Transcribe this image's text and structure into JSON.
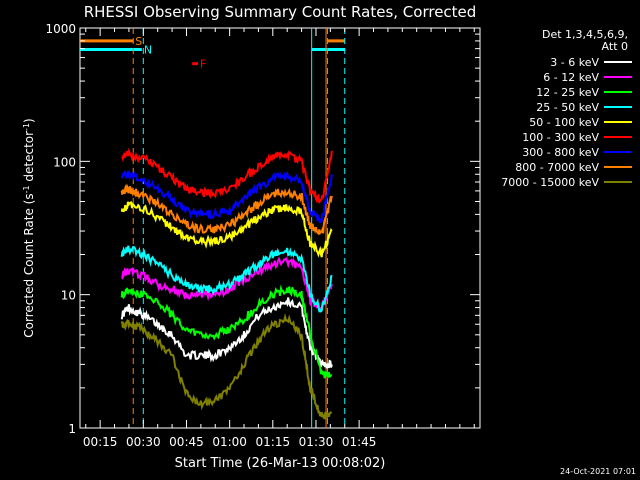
{
  "chart_data": {
    "type": "line",
    "title": "RHESSI Observing Summary Count Rates, Corrected",
    "xlabel": "Start Time (26-Mar-13 00:08:02)",
    "ylabel_parts": [
      "Corrected Count Rate (s",
      "-1",
      " detector",
      "-1",
      ")"
    ],
    "yscale": "log",
    "xlim": [
      8,
      147
    ],
    "ylim": [
      1,
      1000
    ],
    "x_ticks": [
      {
        "x": 15,
        "label": "00:15"
      },
      {
        "x": 30,
        "label": "00:30"
      },
      {
        "x": 45,
        "label": "00:45"
      },
      {
        "x": 60,
        "label": "01:00"
      },
      {
        "x": 75,
        "label": "01:15"
      },
      {
        "x": 90,
        "label": "01:30"
      },
      {
        "x": 105,
        "label": "01:45"
      }
    ],
    "y_ticks": [
      {
        "y": 1,
        "label": "1"
      },
      {
        "y": 10,
        "label": "10"
      },
      {
        "y": 100,
        "label": "100"
      },
      {
        "y": 1000,
        "label": "1000"
      }
    ],
    "legend_header": [
      "Det 1,3,4,5,6,9,",
      "Att 0"
    ],
    "flags": [
      {
        "label": "S",
        "color": "#ff7f00",
        "x_start": 8,
        "x_end": 26.5,
        "y": 800
      },
      {
        "label": "N",
        "color": "#00ffff",
        "x_start": 8,
        "x_end": 29.5,
        "y": 690
      },
      {
        "label": "F",
        "color": "#ff0000",
        "x_start": 47,
        "x_end": 49,
        "y": 540
      }
    ],
    "vlines": [
      {
        "x": 26.5,
        "color": "#ff7f00"
      },
      {
        "x": 30,
        "color": "#00ffff"
      },
      {
        "x": 88.5,
        "color": "#00ffff",
        "style": "solid"
      },
      {
        "x": 93.5,
        "color": "#ff7f00",
        "style": "solid"
      },
      {
        "x": 94,
        "color": "#ff7f00"
      },
      {
        "x": 100,
        "color": "#00ffff"
      }
    ],
    "flag_right": [
      {
        "color": "#00ffff",
        "x_start": 88.5,
        "x_end": 100,
        "y": 690
      },
      {
        "color": "#ff7f00",
        "x_start": 94,
        "x_end": 100,
        "y": 800
      }
    ],
    "x": [
      22.5,
      25,
      30,
      35,
      40,
      45,
      50,
      55,
      60,
      65,
      70,
      75,
      80,
      85,
      88,
      92,
      95.5
    ],
    "series": [
      {
        "name": "3 - 6 keV",
        "color": "#ffffff",
        "values": [
          7,
          8,
          7,
          6,
          5,
          3.5,
          3.5,
          3.5,
          4,
          5,
          7,
          8,
          9,
          8,
          4,
          3,
          3
        ]
      },
      {
        "name": "6 - 12 keV",
        "color": "#ff00ff",
        "values": [
          14,
          15,
          14,
          12,
          11,
          10,
          10,
          10,
          11,
          13,
          15,
          17,
          18,
          16,
          9,
          8,
          12
        ]
      },
      {
        "name": "12 - 25 keV",
        "color": "#00ff00",
        "values": [
          10,
          11,
          10,
          9,
          7,
          5.5,
          5,
          5,
          5.5,
          6.5,
          8.5,
          10,
          11,
          10,
          5,
          2.5,
          2.5
        ]
      },
      {
        "name": "25 - 50 keV",
        "color": "#00ffff",
        "values": [
          20,
          22,
          20,
          17,
          14,
          12,
          11,
          11,
          12,
          14,
          17,
          20,
          21,
          19,
          10,
          7.5,
          14
        ]
      },
      {
        "name": "50 - 100 keV",
        "color": "#ffff00",
        "values": [
          43,
          47,
          44,
          38,
          32,
          27,
          25,
          25,
          27,
          32,
          38,
          43,
          45,
          42,
          24,
          20,
          30
        ]
      },
      {
        "name": "100 - 300 keV",
        "color": "#ff0000",
        "values": [
          110,
          115,
          105,
          90,
          75,
          62,
          58,
          58,
          62,
          75,
          92,
          108,
          112,
          100,
          60,
          50,
          120
        ]
      },
      {
        "name": "300 - 800 keV",
        "color": "#0000ff",
        "values": [
          78,
          80,
          72,
          62,
          52,
          43,
          40,
          40,
          43,
          52,
          63,
          75,
          78,
          70,
          42,
          36,
          80
        ]
      },
      {
        "name": "800 - 7000 keV",
        "color": "#ff7f00",
        "values": [
          60,
          62,
          55,
          48,
          40,
          34,
          31,
          31,
          33,
          40,
          48,
          57,
          60,
          54,
          33,
          28,
          55
        ]
      },
      {
        "name": "7000 - 15000 keV",
        "color": "#808000",
        "values": [
          6,
          6,
          5.5,
          4.5,
          3.5,
          1.8,
          1.5,
          1.6,
          2,
          3,
          4.5,
          6,
          6.5,
          5,
          2,
          1.2,
          1.3
        ]
      }
    ]
  },
  "footer": {
    "date": "24-Oct-2021 07:01"
  }
}
